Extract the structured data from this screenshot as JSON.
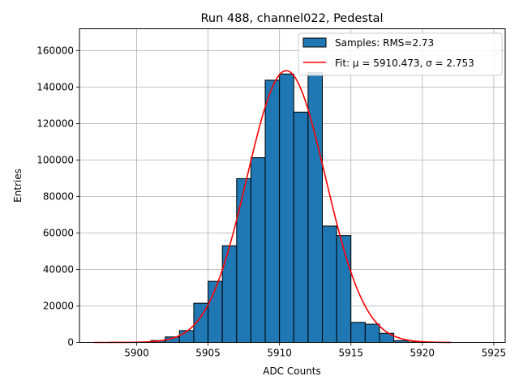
{
  "chart_data": {
    "type": "bar",
    "title": "Run 488, channel022, Pedestal",
    "xlabel": "ADC Counts",
    "ylabel": "Entries",
    "xlim": [
      5896.0,
      5925.8
    ],
    "ylim": [
      0,
      172000
    ],
    "x_ticks": [
      5900,
      5905,
      5910,
      5915,
      5920,
      5925
    ],
    "y_ticks": [
      0,
      20000,
      40000,
      60000,
      80000,
      100000,
      120000,
      140000,
      160000
    ],
    "grid": true,
    "bin_width": 1,
    "bin_left_edges": [
      5900,
      5901,
      5902,
      5903,
      5904,
      5905,
      5906,
      5907,
      5908,
      5909,
      5910,
      5911,
      5912,
      5913,
      5914,
      5915,
      5916,
      5917,
      5918,
      5919
    ],
    "counts": [
      100,
      1000,
      3000,
      6500,
      21500,
      33500,
      53000,
      89800,
      101300,
      143800,
      147200,
      126300,
      147900,
      63800,
      58600,
      11000,
      10000,
      5000,
      1000,
      200
    ],
    "fit": {
      "mu": 5910.473,
      "sigma": 2.753,
      "amplitude": 149000,
      "x_range": [
        5897,
        5922
      ]
    },
    "colors": {
      "bar_fill": "#1f77b4",
      "bar_edge": "#000000",
      "fit_line": "#ff0000",
      "grid": "#b0b0b0"
    },
    "legend": {
      "placement": "top-right",
      "entries": [
        {
          "label": "Samples: RMS=2.73",
          "kind": "patch"
        },
        {
          "label": "Fit: μ = 5910.473, σ = 2.753",
          "kind": "line"
        }
      ]
    }
  }
}
